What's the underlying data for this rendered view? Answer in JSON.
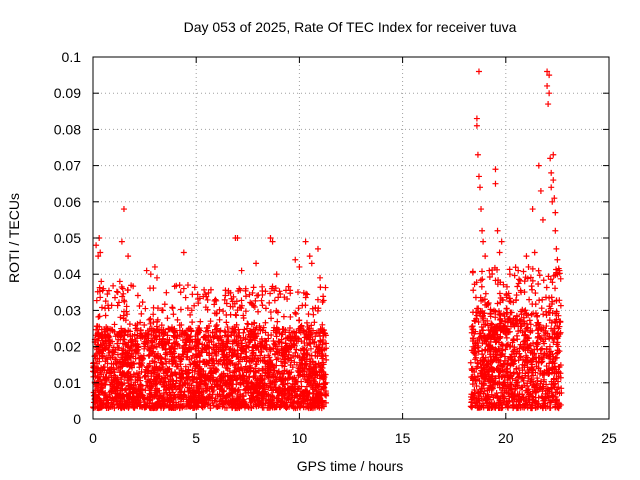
{
  "chart_data": {
    "type": "scatter",
    "title": "Day 053 of 2025, Rate Of TEC Index for receiver tuva",
    "xlabel": "GPS time / hours",
    "ylabel": "ROTI / TECUs",
    "xlim": [
      0,
      25
    ],
    "ylim": [
      0,
      0.1
    ],
    "xticks": [
      0,
      5,
      10,
      15,
      20,
      25
    ],
    "xtick_labels": [
      "0",
      "5",
      "10",
      "15",
      "20",
      "25"
    ],
    "yticks": [
      0,
      0.01,
      0.02,
      0.03,
      0.04,
      0.05,
      0.06,
      0.07,
      0.08,
      0.09,
      0.1
    ],
    "ytick_labels": [
      "0",
      "0.01",
      "0.02",
      "0.03",
      "0.04",
      "0.05",
      "0.06",
      "0.07",
      "0.08",
      "0.09",
      "0.1"
    ],
    "grid": true,
    "marker": "plus",
    "color": "#ff0000",
    "series": [
      {
        "name": "ROTI",
        "description_of_dense_band": "Dense cloud of points mostly between 0.002 and 0.03 TECU/s covering roughly 0-11.3 h and 18.3-22.7 h",
        "segments": [
          {
            "x_range": [
              0.0,
              11.3
            ],
            "y_typical": [
              0.003,
              0.025
            ]
          },
          {
            "x_range": [
              18.3,
              22.7
            ],
            "y_typical": [
              0.003,
              0.03
            ]
          }
        ],
        "points": [
          [
            0.15,
            0.048
          ],
          [
            0.25,
            0.045
          ],
          [
            0.3,
            0.05
          ],
          [
            0.35,
            0.046
          ],
          [
            0.4,
            0.038
          ],
          [
            0.5,
            0.036
          ],
          [
            1.4,
            0.049
          ],
          [
            1.5,
            0.058
          ],
          [
            1.7,
            0.045
          ],
          [
            1.3,
            0.038
          ],
          [
            1.2,
            0.035
          ],
          [
            2.6,
            0.041
          ],
          [
            2.8,
            0.04
          ],
          [
            3.0,
            0.042
          ],
          [
            3.1,
            0.039
          ],
          [
            4.4,
            0.046
          ],
          [
            4.6,
            0.037
          ],
          [
            5.1,
            0.032
          ],
          [
            6.9,
            0.05
          ],
          [
            7.0,
            0.05
          ],
          [
            7.2,
            0.041
          ],
          [
            7.4,
            0.036
          ],
          [
            7.9,
            0.043
          ],
          [
            8.6,
            0.05
          ],
          [
            8.7,
            0.049
          ],
          [
            8.9,
            0.04
          ],
          [
            9.8,
            0.044
          ],
          [
            10.0,
            0.042
          ],
          [
            10.3,
            0.049
          ],
          [
            10.5,
            0.045
          ],
          [
            10.6,
            0.043
          ],
          [
            10.9,
            0.047
          ],
          [
            11.0,
            0.039
          ],
          [
            18.6,
            0.083
          ],
          [
            18.6,
            0.081
          ],
          [
            18.65,
            0.073
          ],
          [
            18.7,
            0.096
          ],
          [
            18.7,
            0.067
          ],
          [
            18.75,
            0.064
          ],
          [
            18.8,
            0.058
          ],
          [
            18.85,
            0.052
          ],
          [
            18.9,
            0.049
          ],
          [
            19.0,
            0.045
          ],
          [
            19.2,
            0.041
          ],
          [
            19.5,
            0.069
          ],
          [
            19.5,
            0.065
          ],
          [
            19.6,
            0.052
          ],
          [
            19.7,
            0.046
          ],
          [
            19.8,
            0.049
          ],
          [
            20.2,
            0.04
          ],
          [
            20.6,
            0.041
          ],
          [
            21.0,
            0.045
          ],
          [
            21.1,
            0.042
          ],
          [
            21.3,
            0.058
          ],
          [
            21.4,
            0.046
          ],
          [
            21.6,
            0.07
          ],
          [
            21.7,
            0.063
          ],
          [
            21.8,
            0.055
          ],
          [
            22.0,
            0.096
          ],
          [
            22.0,
            0.092
          ],
          [
            22.05,
            0.087
          ],
          [
            22.1,
            0.095
          ],
          [
            22.1,
            0.09
          ],
          [
            22.15,
            0.072
          ],
          [
            22.2,
            0.068
          ],
          [
            22.2,
            0.064
          ],
          [
            22.25,
            0.06
          ],
          [
            22.3,
            0.073
          ],
          [
            22.3,
            0.066
          ],
          [
            22.35,
            0.061
          ],
          [
            22.4,
            0.057
          ],
          [
            22.4,
            0.052
          ],
          [
            22.45,
            0.047
          ],
          [
            22.5,
            0.044
          ],
          [
            22.6,
            0.041
          ]
        ]
      }
    ]
  }
}
